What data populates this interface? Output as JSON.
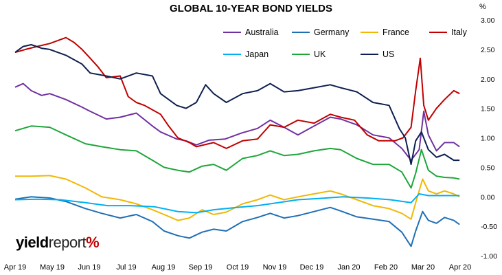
{
  "title": "GLOBAL 10-YEAR BOND YIELDS",
  "unit": "%",
  "brand": {
    "part1": "yield",
    "part2": "report",
    "part3": "%"
  },
  "chart_data": {
    "type": "line",
    "title": "GLOBAL 10-YEAR BOND YIELDS",
    "ylabel": "%",
    "ylim": [
      -1.0,
      3.0
    ],
    "xlim": [
      "2019-04-01",
      "2020-04-30"
    ],
    "y_ticks": [
      "3.00",
      "2.50",
      "2.00",
      "1.50",
      "1.00",
      "0.50",
      "0.00",
      "-0.50",
      "-1.00"
    ],
    "x_ticks": [
      "Apr 19",
      "May 19",
      "Jun 19",
      "Jul 19",
      "Aug 19",
      "Sep 19",
      "Oct 19",
      "Nov 19",
      "Dec 19",
      "Jan 20",
      "Feb 20",
      "Mar 20",
      "Apr 20"
    ],
    "grid": false,
    "legend_position": "top-right",
    "series": [
      {
        "name": "Australia",
        "color": "#7030a0",
        "points": [
          [
            "2019-04-01",
            1.86
          ],
          [
            "2019-04-08",
            1.92
          ],
          [
            "2019-04-15",
            1.8
          ],
          [
            "2019-04-24",
            1.72
          ],
          [
            "2019-05-01",
            1.75
          ],
          [
            "2019-05-15",
            1.65
          ],
          [
            "2019-05-29",
            1.52
          ],
          [
            "2019-06-05",
            1.45
          ],
          [
            "2019-06-19",
            1.32
          ],
          [
            "2019-07-01",
            1.35
          ],
          [
            "2019-07-15",
            1.42
          ],
          [
            "2019-07-29",
            1.2
          ],
          [
            "2019-08-05",
            1.1
          ],
          [
            "2019-08-19",
            0.98
          ],
          [
            "2019-08-27",
            0.95
          ],
          [
            "2019-09-05",
            0.88
          ],
          [
            "2019-09-16",
            0.96
          ],
          [
            "2019-09-30",
            0.98
          ],
          [
            "2019-10-14",
            1.08
          ],
          [
            "2019-10-28",
            1.16
          ],
          [
            "2019-11-08",
            1.3
          ],
          [
            "2019-11-20",
            1.18
          ],
          [
            "2019-12-02",
            1.05
          ],
          [
            "2019-12-16",
            1.2
          ],
          [
            "2019-12-30",
            1.35
          ],
          [
            "2020-01-08",
            1.32
          ],
          [
            "2020-01-22",
            1.22
          ],
          [
            "2020-02-05",
            1.05
          ],
          [
            "2020-02-19",
            1.0
          ],
          [
            "2020-03-01",
            0.82
          ],
          [
            "2020-03-09",
            0.62
          ],
          [
            "2020-03-16",
            0.8
          ],
          [
            "2020-03-20",
            1.45
          ],
          [
            "2020-03-24",
            1.05
          ],
          [
            "2020-03-31",
            0.78
          ],
          [
            "2020-04-07",
            0.92
          ],
          [
            "2020-04-15",
            0.92
          ],
          [
            "2020-04-20",
            0.85
          ]
        ]
      },
      {
        "name": "Germany",
        "color": "#1f6fb5",
        "points": [
          [
            "2019-04-01",
            -0.04
          ],
          [
            "2019-04-15",
            0.0
          ],
          [
            "2019-05-01",
            -0.02
          ],
          [
            "2019-05-15",
            -0.08
          ],
          [
            "2019-06-01",
            -0.2
          ],
          [
            "2019-06-15",
            -0.28
          ],
          [
            "2019-07-01",
            -0.36
          ],
          [
            "2019-07-15",
            -0.3
          ],
          [
            "2019-07-29",
            -0.42
          ],
          [
            "2019-08-08",
            -0.58
          ],
          [
            "2019-08-20",
            -0.66
          ],
          [
            "2019-08-30",
            -0.7
          ],
          [
            "2019-09-10",
            -0.6
          ],
          [
            "2019-09-20",
            -0.55
          ],
          [
            "2019-10-01",
            -0.58
          ],
          [
            "2019-10-15",
            -0.42
          ],
          [
            "2019-10-28",
            -0.35
          ],
          [
            "2019-11-08",
            -0.28
          ],
          [
            "2019-11-20",
            -0.36
          ],
          [
            "2019-12-02",
            -0.32
          ],
          [
            "2019-12-16",
            -0.25
          ],
          [
            "2019-12-30",
            -0.18
          ],
          [
            "2020-01-08",
            -0.24
          ],
          [
            "2020-01-22",
            -0.34
          ],
          [
            "2020-02-05",
            -0.38
          ],
          [
            "2020-02-19",
            -0.42
          ],
          [
            "2020-03-01",
            -0.6
          ],
          [
            "2020-03-09",
            -0.84
          ],
          [
            "2020-03-13",
            -0.58
          ],
          [
            "2020-03-19",
            -0.25
          ],
          [
            "2020-03-24",
            -0.4
          ],
          [
            "2020-03-31",
            -0.45
          ],
          [
            "2020-04-07",
            -0.35
          ],
          [
            "2020-04-15",
            -0.4
          ],
          [
            "2020-04-20",
            -0.47
          ]
        ]
      },
      {
        "name": "France",
        "color": "#f2b705",
        "points": [
          [
            "2019-04-01",
            0.35
          ],
          [
            "2019-04-15",
            0.35
          ],
          [
            "2019-05-01",
            0.36
          ],
          [
            "2019-05-15",
            0.3
          ],
          [
            "2019-06-01",
            0.15
          ],
          [
            "2019-06-15",
            0.0
          ],
          [
            "2019-07-01",
            -0.05
          ],
          [
            "2019-07-15",
            -0.12
          ],
          [
            "2019-07-29",
            -0.22
          ],
          [
            "2019-08-08",
            -0.3
          ],
          [
            "2019-08-20",
            -0.4
          ],
          [
            "2019-08-30",
            -0.36
          ],
          [
            "2019-09-10",
            -0.22
          ],
          [
            "2019-09-20",
            -0.3
          ],
          [
            "2019-10-01",
            -0.26
          ],
          [
            "2019-10-15",
            -0.12
          ],
          [
            "2019-10-28",
            -0.05
          ],
          [
            "2019-11-08",
            0.03
          ],
          [
            "2019-11-20",
            -0.05
          ],
          [
            "2019-12-02",
            0.0
          ],
          [
            "2019-12-16",
            0.05
          ],
          [
            "2019-12-30",
            0.1
          ],
          [
            "2020-01-08",
            0.05
          ],
          [
            "2020-01-22",
            -0.05
          ],
          [
            "2020-02-05",
            -0.15
          ],
          [
            "2020-02-19",
            -0.2
          ],
          [
            "2020-03-01",
            -0.28
          ],
          [
            "2020-03-09",
            -0.38
          ],
          [
            "2020-03-13",
            -0.1
          ],
          [
            "2020-03-19",
            0.3
          ],
          [
            "2020-03-24",
            0.1
          ],
          [
            "2020-03-31",
            0.05
          ],
          [
            "2020-04-07",
            0.1
          ],
          [
            "2020-04-15",
            0.05
          ],
          [
            "2020-04-20",
            0.0
          ]
        ]
      },
      {
        "name": "Italy",
        "color": "#c00000",
        "points": [
          [
            "2019-04-01",
            2.45
          ],
          [
            "2019-04-10",
            2.5
          ],
          [
            "2019-04-20",
            2.55
          ],
          [
            "2019-05-01",
            2.6
          ],
          [
            "2019-05-15",
            2.7
          ],
          [
            "2019-05-22",
            2.62
          ],
          [
            "2019-05-29",
            2.5
          ],
          [
            "2019-06-05",
            2.35
          ],
          [
            "2019-06-12",
            2.2
          ],
          [
            "2019-06-19",
            2.02
          ],
          [
            "2019-07-01",
            2.05
          ],
          [
            "2019-07-08",
            1.7
          ],
          [
            "2019-07-15",
            1.6
          ],
          [
            "2019-07-22",
            1.55
          ],
          [
            "2019-08-05",
            1.4
          ],
          [
            "2019-08-12",
            1.2
          ],
          [
            "2019-08-20",
            1.0
          ],
          [
            "2019-08-30",
            0.92
          ],
          [
            "2019-09-05",
            0.85
          ],
          [
            "2019-09-20",
            0.92
          ],
          [
            "2019-10-01",
            0.82
          ],
          [
            "2019-10-15",
            0.95
          ],
          [
            "2019-10-28",
            0.98
          ],
          [
            "2019-11-08",
            1.22
          ],
          [
            "2019-11-20",
            1.18
          ],
          [
            "2019-12-02",
            1.3
          ],
          [
            "2019-12-16",
            1.25
          ],
          [
            "2019-12-30",
            1.4
          ],
          [
            "2020-01-08",
            1.35
          ],
          [
            "2020-01-20",
            1.3
          ],
          [
            "2020-01-31",
            1.05
          ],
          [
            "2020-02-10",
            0.95
          ],
          [
            "2020-02-24",
            0.95
          ],
          [
            "2020-03-02",
            1.0
          ],
          [
            "2020-03-09",
            1.18
          ],
          [
            "2020-03-13",
            1.8
          ],
          [
            "2020-03-17",
            2.35
          ],
          [
            "2020-03-20",
            1.55
          ],
          [
            "2020-03-24",
            1.3
          ],
          [
            "2020-03-31",
            1.5
          ],
          [
            "2020-04-07",
            1.65
          ],
          [
            "2020-04-15",
            1.8
          ],
          [
            "2020-04-20",
            1.75
          ]
        ]
      },
      {
        "name": "Japan",
        "color": "#00b0f0",
        "points": [
          [
            "2019-04-01",
            -0.05
          ],
          [
            "2019-04-20",
            -0.04
          ],
          [
            "2019-05-10",
            -0.05
          ],
          [
            "2019-06-01",
            -0.1
          ],
          [
            "2019-06-20",
            -0.15
          ],
          [
            "2019-07-10",
            -0.15
          ],
          [
            "2019-07-31",
            -0.17
          ],
          [
            "2019-08-20",
            -0.25
          ],
          [
            "2019-09-05",
            -0.27
          ],
          [
            "2019-09-20",
            -0.22
          ],
          [
            "2019-10-10",
            -0.18
          ],
          [
            "2019-10-28",
            -0.15
          ],
          [
            "2019-11-15",
            -0.1
          ],
          [
            "2019-12-02",
            -0.05
          ],
          [
            "2019-12-20",
            -0.03
          ],
          [
            "2020-01-10",
            0.0
          ],
          [
            "2020-01-31",
            -0.02
          ],
          [
            "2020-02-20",
            -0.05
          ],
          [
            "2020-03-09",
            -0.1
          ],
          [
            "2020-03-16",
            0.05
          ],
          [
            "2020-03-24",
            0.02
          ],
          [
            "2020-04-07",
            0.02
          ],
          [
            "2020-04-20",
            0.02
          ]
        ]
      },
      {
        "name": "UK",
        "color": "#1ea63a",
        "points": [
          [
            "2019-04-01",
            1.12
          ],
          [
            "2019-04-15",
            1.2
          ],
          [
            "2019-05-01",
            1.18
          ],
          [
            "2019-05-15",
            1.05
          ],
          [
            "2019-06-01",
            0.9
          ],
          [
            "2019-06-15",
            0.85
          ],
          [
            "2019-07-01",
            0.8
          ],
          [
            "2019-07-15",
            0.78
          ],
          [
            "2019-07-29",
            0.62
          ],
          [
            "2019-08-08",
            0.5
          ],
          [
            "2019-08-20",
            0.45
          ],
          [
            "2019-08-30",
            0.42
          ],
          [
            "2019-09-10",
            0.52
          ],
          [
            "2019-09-20",
            0.55
          ],
          [
            "2019-10-01",
            0.45
          ],
          [
            "2019-10-15",
            0.65
          ],
          [
            "2019-10-28",
            0.7
          ],
          [
            "2019-11-08",
            0.78
          ],
          [
            "2019-11-20",
            0.7
          ],
          [
            "2019-12-02",
            0.72
          ],
          [
            "2019-12-16",
            0.78
          ],
          [
            "2019-12-30",
            0.82
          ],
          [
            "2020-01-08",
            0.8
          ],
          [
            "2020-01-22",
            0.65
          ],
          [
            "2020-02-05",
            0.55
          ],
          [
            "2020-02-19",
            0.55
          ],
          [
            "2020-03-01",
            0.42
          ],
          [
            "2020-03-09",
            0.15
          ],
          [
            "2020-03-13",
            0.4
          ],
          [
            "2020-03-18",
            0.8
          ],
          [
            "2020-03-24",
            0.45
          ],
          [
            "2020-03-31",
            0.35
          ],
          [
            "2020-04-07",
            0.33
          ],
          [
            "2020-04-15",
            0.32
          ],
          [
            "2020-04-20",
            0.3
          ]
        ]
      },
      {
        "name": "US",
        "color": "#0d1f4f",
        "points": [
          [
            "2019-04-01",
            2.45
          ],
          [
            "2019-04-08",
            2.55
          ],
          [
            "2019-04-15",
            2.58
          ],
          [
            "2019-04-24",
            2.52
          ],
          [
            "2019-05-01",
            2.5
          ],
          [
            "2019-05-15",
            2.4
          ],
          [
            "2019-05-29",
            2.25
          ],
          [
            "2019-06-05",
            2.1
          ],
          [
            "2019-06-19",
            2.05
          ],
          [
            "2019-07-01",
            2.0
          ],
          [
            "2019-07-15",
            2.1
          ],
          [
            "2019-07-29",
            2.05
          ],
          [
            "2019-08-05",
            1.75
          ],
          [
            "2019-08-19",
            1.55
          ],
          [
            "2019-08-27",
            1.5
          ],
          [
            "2019-09-05",
            1.6
          ],
          [
            "2019-09-13",
            1.9
          ],
          [
            "2019-09-20",
            1.75
          ],
          [
            "2019-10-01",
            1.6
          ],
          [
            "2019-10-15",
            1.75
          ],
          [
            "2019-10-28",
            1.8
          ],
          [
            "2019-11-08",
            1.92
          ],
          [
            "2019-11-20",
            1.78
          ],
          [
            "2019-12-02",
            1.8
          ],
          [
            "2019-12-16",
            1.85
          ],
          [
            "2019-12-30",
            1.9
          ],
          [
            "2020-01-08",
            1.85
          ],
          [
            "2020-01-22",
            1.78
          ],
          [
            "2020-02-05",
            1.6
          ],
          [
            "2020-02-19",
            1.55
          ],
          [
            "2020-02-28",
            1.15
          ],
          [
            "2020-03-04",
            1.0
          ],
          [
            "2020-03-09",
            0.55
          ],
          [
            "2020-03-13",
            0.95
          ],
          [
            "2020-03-18",
            1.1
          ],
          [
            "2020-03-24",
            0.8
          ],
          [
            "2020-03-31",
            0.67
          ],
          [
            "2020-04-07",
            0.72
          ],
          [
            "2020-04-15",
            0.62
          ],
          [
            "2020-04-20",
            0.62
          ]
        ]
      }
    ]
  }
}
